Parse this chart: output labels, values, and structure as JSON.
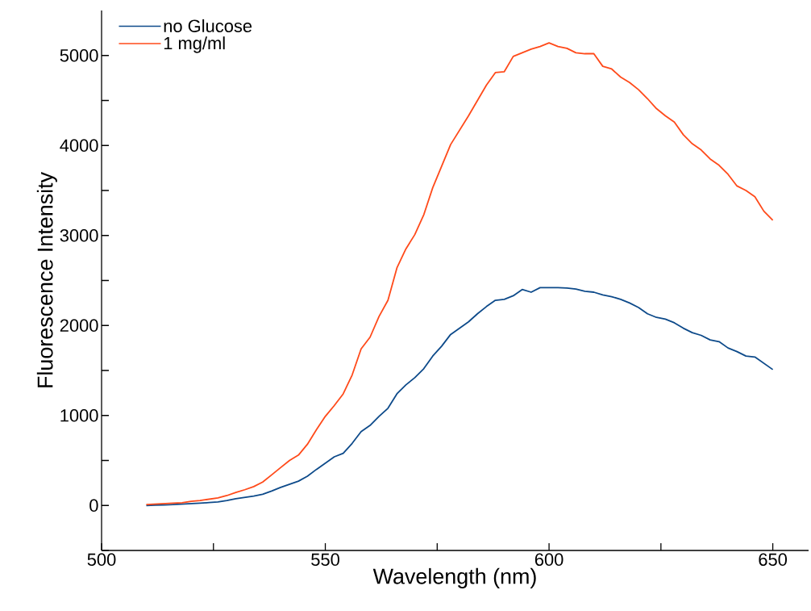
{
  "chart_data": {
    "type": "line",
    "xlabel": "Wavelength (nm)",
    "ylabel": "Fluorescence Intensity",
    "x": [
      510,
      512,
      514,
      516,
      518,
      520,
      522,
      524,
      526,
      528,
      530,
      532,
      534,
      536,
      538,
      540,
      542,
      544,
      546,
      548,
      550,
      552,
      554,
      556,
      558,
      560,
      562,
      564,
      566,
      568,
      570,
      572,
      574,
      576,
      578,
      580,
      582,
      584,
      586,
      588,
      590,
      592,
      594,
      596,
      598,
      600,
      602,
      604,
      606,
      608,
      610,
      612,
      614,
      616,
      618,
      620,
      622,
      624,
      626,
      628,
      630,
      632,
      634,
      636,
      638,
      640,
      642,
      644,
      646,
      648,
      650
    ],
    "series": [
      {
        "name": "no Glucose",
        "color": "#0d4a8a",
        "values": [
          0,
          3,
          6,
          10,
          15,
          20,
          25,
          32,
          40,
          55,
          75,
          90,
          105,
          125,
          160,
          200,
          235,
          270,
          325,
          400,
          470,
          540,
          580,
          690,
          820,
          890,
          990,
          1080,
          1240,
          1340,
          1420,
          1520,
          1660,
          1770,
          1900,
          1970,
          2040,
          2130,
          2210,
          2280,
          2290,
          2330,
          2400,
          2370,
          2420,
          2420,
          2420,
          2415,
          2405,
          2380,
          2370,
          2340,
          2320,
          2290,
          2250,
          2200,
          2130,
          2090,
          2070,
          2030,
          1970,
          1920,
          1890,
          1840,
          1820,
          1750,
          1710,
          1660,
          1650,
          1580,
          1510
        ]
      },
      {
        "name": "1 mg/ml",
        "color": "#ff4a1a",
        "values": [
          10,
          15,
          20,
          25,
          30,
          45,
          55,
          70,
          85,
          110,
          145,
          175,
          210,
          260,
          340,
          420,
          500,
          560,
          680,
          840,
          990,
          1110,
          1240,
          1450,
          1740,
          1870,
          2100,
          2280,
          2640,
          2850,
          3010,
          3230,
          3530,
          3770,
          4010,
          4170,
          4330,
          4500,
          4670,
          4810,
          4820,
          4990,
          5030,
          5070,
          5100,
          5140,
          5100,
          5080,
          5030,
          5020,
          5020,
          4880,
          4850,
          4760,
          4700,
          4620,
          4520,
          4410,
          4330,
          4260,
          4120,
          4020,
          3950,
          3850,
          3780,
          3680,
          3550,
          3500,
          3430,
          3270,
          3170
        ]
      }
    ],
    "xlim": [
      500,
      658
    ],
    "ylim": [
      -500,
      5500
    ],
    "xticks": [
      500,
      {
        "value": 525,
        "label": null
      },
      550,
      {
        "value": 575,
        "label": null
      },
      600,
      {
        "value": 625,
        "label": null
      },
      650
    ],
    "yticks": [
      {
        "value": -500,
        "label": null
      },
      0,
      {
        "value": 500,
        "label": null
      },
      1000,
      {
        "value": 1500,
        "label": null
      },
      2000,
      {
        "value": 2500,
        "label": null
      },
      3000,
      {
        "value": 3500,
        "label": null
      },
      4000,
      {
        "value": 4500,
        "label": null
      },
      5000
    ],
    "grid": false,
    "legend": "top left",
    "marker": "none",
    "line_style": "solid"
  }
}
